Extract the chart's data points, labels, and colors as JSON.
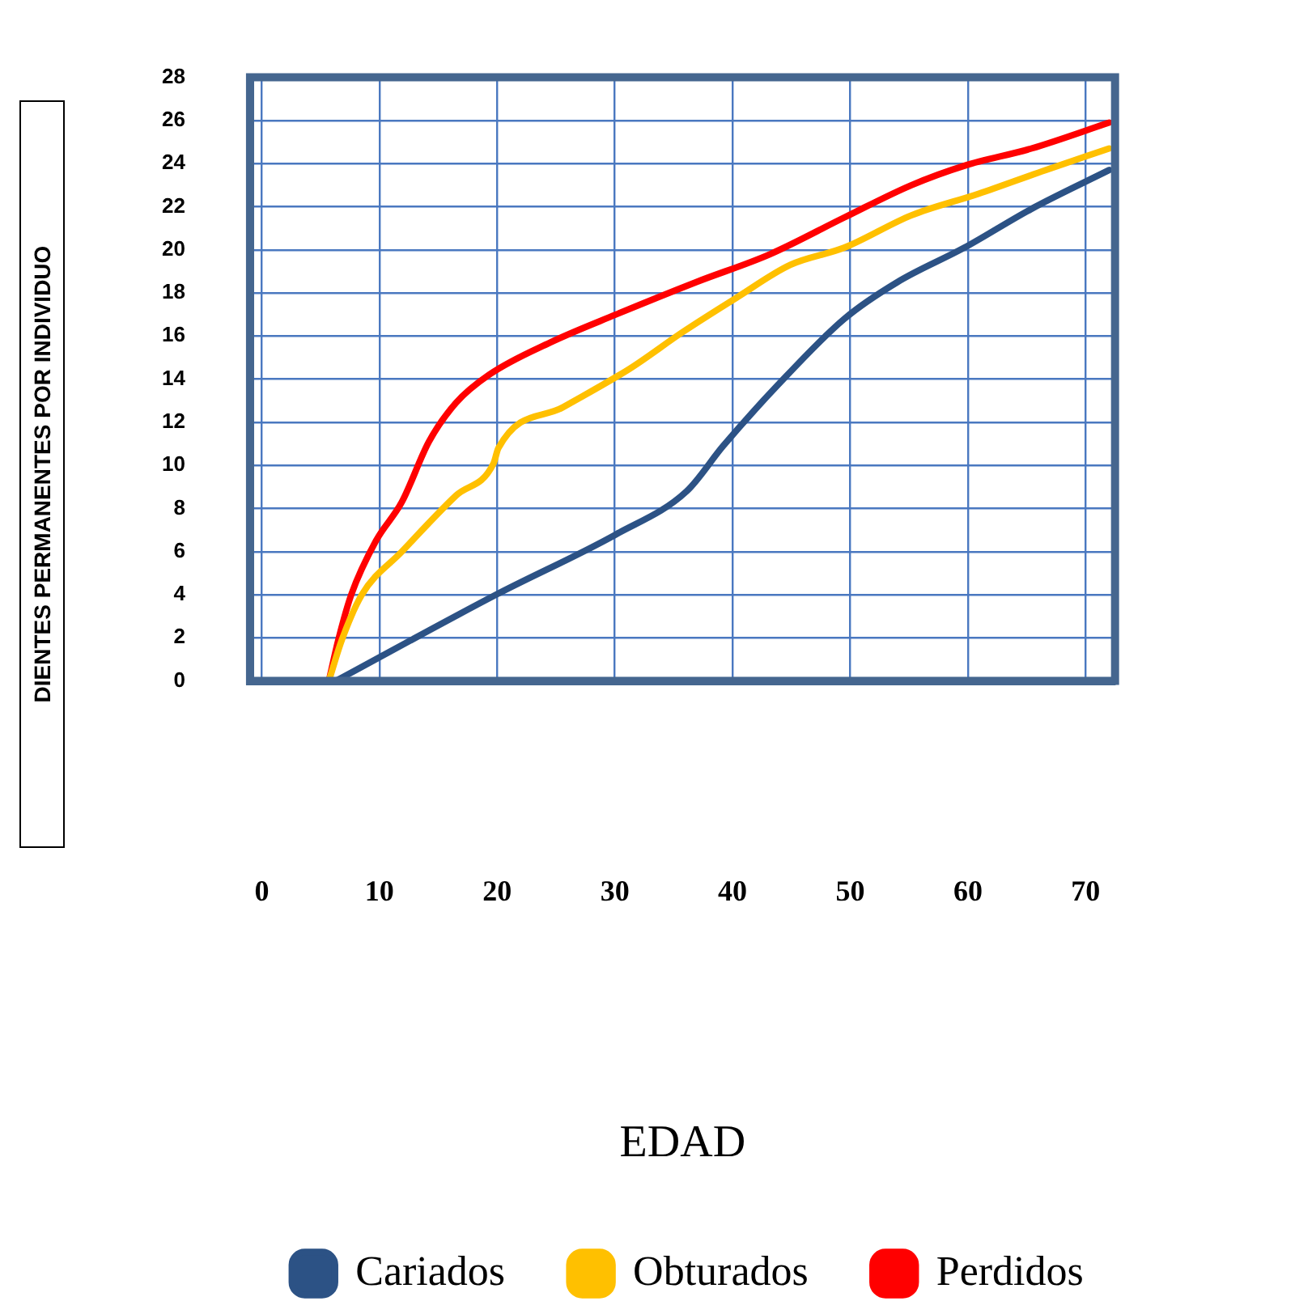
{
  "chart_data": {
    "type": "line",
    "xlabel": "EDAD",
    "ylabel": "DIENTES PERMANENTES POR INDIVIDUO",
    "xlim": [
      -1,
      72.5
    ],
    "xticks": [
      0,
      10,
      20,
      30,
      40,
      50,
      60,
      70
    ],
    "ylim": [
      0,
      28
    ],
    "yticks": [
      0,
      2,
      4,
      6,
      8,
      10,
      12,
      14,
      16,
      18,
      20,
      22,
      24,
      26,
      28
    ],
    "grid": true,
    "legend": "bottom",
    "marker": "none",
    "line_style": "solid",
    "series": [
      {
        "name": "Cariados",
        "color": "#2c5285",
        "x": [
          6.3,
          19.9,
          30.1,
          36.1,
          39.2,
          43.8,
          49.5,
          54,
          59.7,
          65.4,
          72
        ],
        "values": [
          0,
          4,
          6.8,
          8.8,
          10.9,
          13.7,
          16.8,
          18.5,
          20.1,
          21.9,
          23.7
        ]
      },
      {
        "name": "Obturados",
        "color": "#ffc000",
        "x": [
          5.7,
          6.8,
          8.5,
          11.9,
          16.5,
          19.7,
          20.1,
          25.6,
          31.3,
          35.8,
          40.4,
          44.9,
          49.5,
          55.2,
          60.9,
          66.6,
          72
        ],
        "values": [
          0,
          1.9,
          4,
          6,
          8.6,
          10.1,
          10.8,
          12.7,
          14.5,
          16.2,
          17.8,
          19.3,
          20.1,
          21.6,
          22.6,
          23.7,
          24.7
        ]
      },
      {
        "name": "Perdidos",
        "color": "#ff0000",
        "x": [
          5.7,
          6.5,
          7.6,
          9.7,
          11.9,
          14.2,
          16.5,
          19.3,
          24.5,
          30.1,
          36.9,
          43.2,
          49.5,
          55.2,
          59.7,
          65.4,
          72
        ],
        "values": [
          0,
          1.9,
          4,
          6.5,
          8.3,
          11.1,
          12.9,
          14.2,
          15.7,
          17,
          18.5,
          19.8,
          21.5,
          23,
          23.9,
          24.7,
          25.9
        ]
      }
    ]
  }
}
